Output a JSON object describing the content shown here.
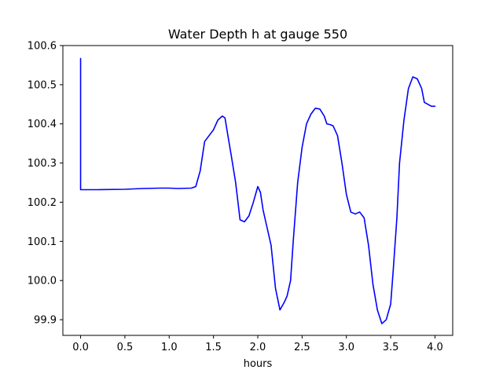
{
  "chart_data": {
    "type": "line",
    "title": "Water Depth h at gauge 550",
    "xlabel": "hours",
    "ylabel": "",
    "xlim": [
      -0.2,
      4.2
    ],
    "ylim": [
      99.86,
      100.6
    ],
    "xticks": [
      0.0,
      0.5,
      1.0,
      1.5,
      2.0,
      2.5,
      3.0,
      3.5,
      4.0
    ],
    "xtick_labels": [
      "0.0",
      "0.5",
      "1.0",
      "1.5",
      "2.0",
      "2.5",
      "3.0",
      "3.5",
      "4.0"
    ],
    "yticks": [
      99.9,
      100.0,
      100.1,
      100.2,
      100.3,
      100.4,
      100.5,
      100.6
    ],
    "ytick_labels": [
      "99.9",
      "100.0",
      "100.1",
      "100.2",
      "100.3",
      "100.4",
      "100.5",
      "100.6"
    ],
    "grid": false,
    "series": [
      {
        "color": "#0000ff",
        "x": [
          0.0,
          0.0,
          0.005,
          0.2,
          0.5,
          0.7,
          0.9,
          1.0,
          1.1,
          1.25,
          1.3,
          1.35,
          1.4,
          1.45,
          1.5,
          1.55,
          1.6,
          1.63,
          1.67,
          1.7,
          1.75,
          1.8,
          1.85,
          1.9,
          1.95,
          2.0,
          2.03,
          2.06,
          2.1,
          2.15,
          2.2,
          2.25,
          2.3,
          2.33,
          2.37,
          2.4,
          2.45,
          2.5,
          2.55,
          2.6,
          2.65,
          2.7,
          2.75,
          2.78,
          2.82,
          2.85,
          2.9,
          2.95,
          3.0,
          3.05,
          3.1,
          3.15,
          3.2,
          3.25,
          3.3,
          3.35,
          3.4,
          3.45,
          3.5,
          3.53,
          3.57,
          3.6,
          3.65,
          3.7,
          3.75,
          3.8,
          3.85,
          3.88,
          3.92,
          3.96,
          4.0
        ],
        "y": [
          100.567,
          100.232,
          100.232,
          100.232,
          100.233,
          100.235,
          100.236,
          100.236,
          100.235,
          100.236,
          100.24,
          100.28,
          100.355,
          100.37,
          100.385,
          100.41,
          100.42,
          100.415,
          100.36,
          100.32,
          100.25,
          100.155,
          100.15,
          100.165,
          100.2,
          100.24,
          100.225,
          100.18,
          100.14,
          100.09,
          99.98,
          99.925,
          99.945,
          99.96,
          100.0,
          100.1,
          100.25,
          100.34,
          100.4,
          100.425,
          100.44,
          100.438,
          100.42,
          100.4,
          100.398,
          100.395,
          100.37,
          100.3,
          100.22,
          100.175,
          100.17,
          100.175,
          100.16,
          100.09,
          99.99,
          99.925,
          99.89,
          99.9,
          99.94,
          100.03,
          100.16,
          100.3,
          100.41,
          100.49,
          100.52,
          100.515,
          100.49,
          100.455,
          100.45,
          100.445,
          100.445
        ]
      }
    ]
  }
}
